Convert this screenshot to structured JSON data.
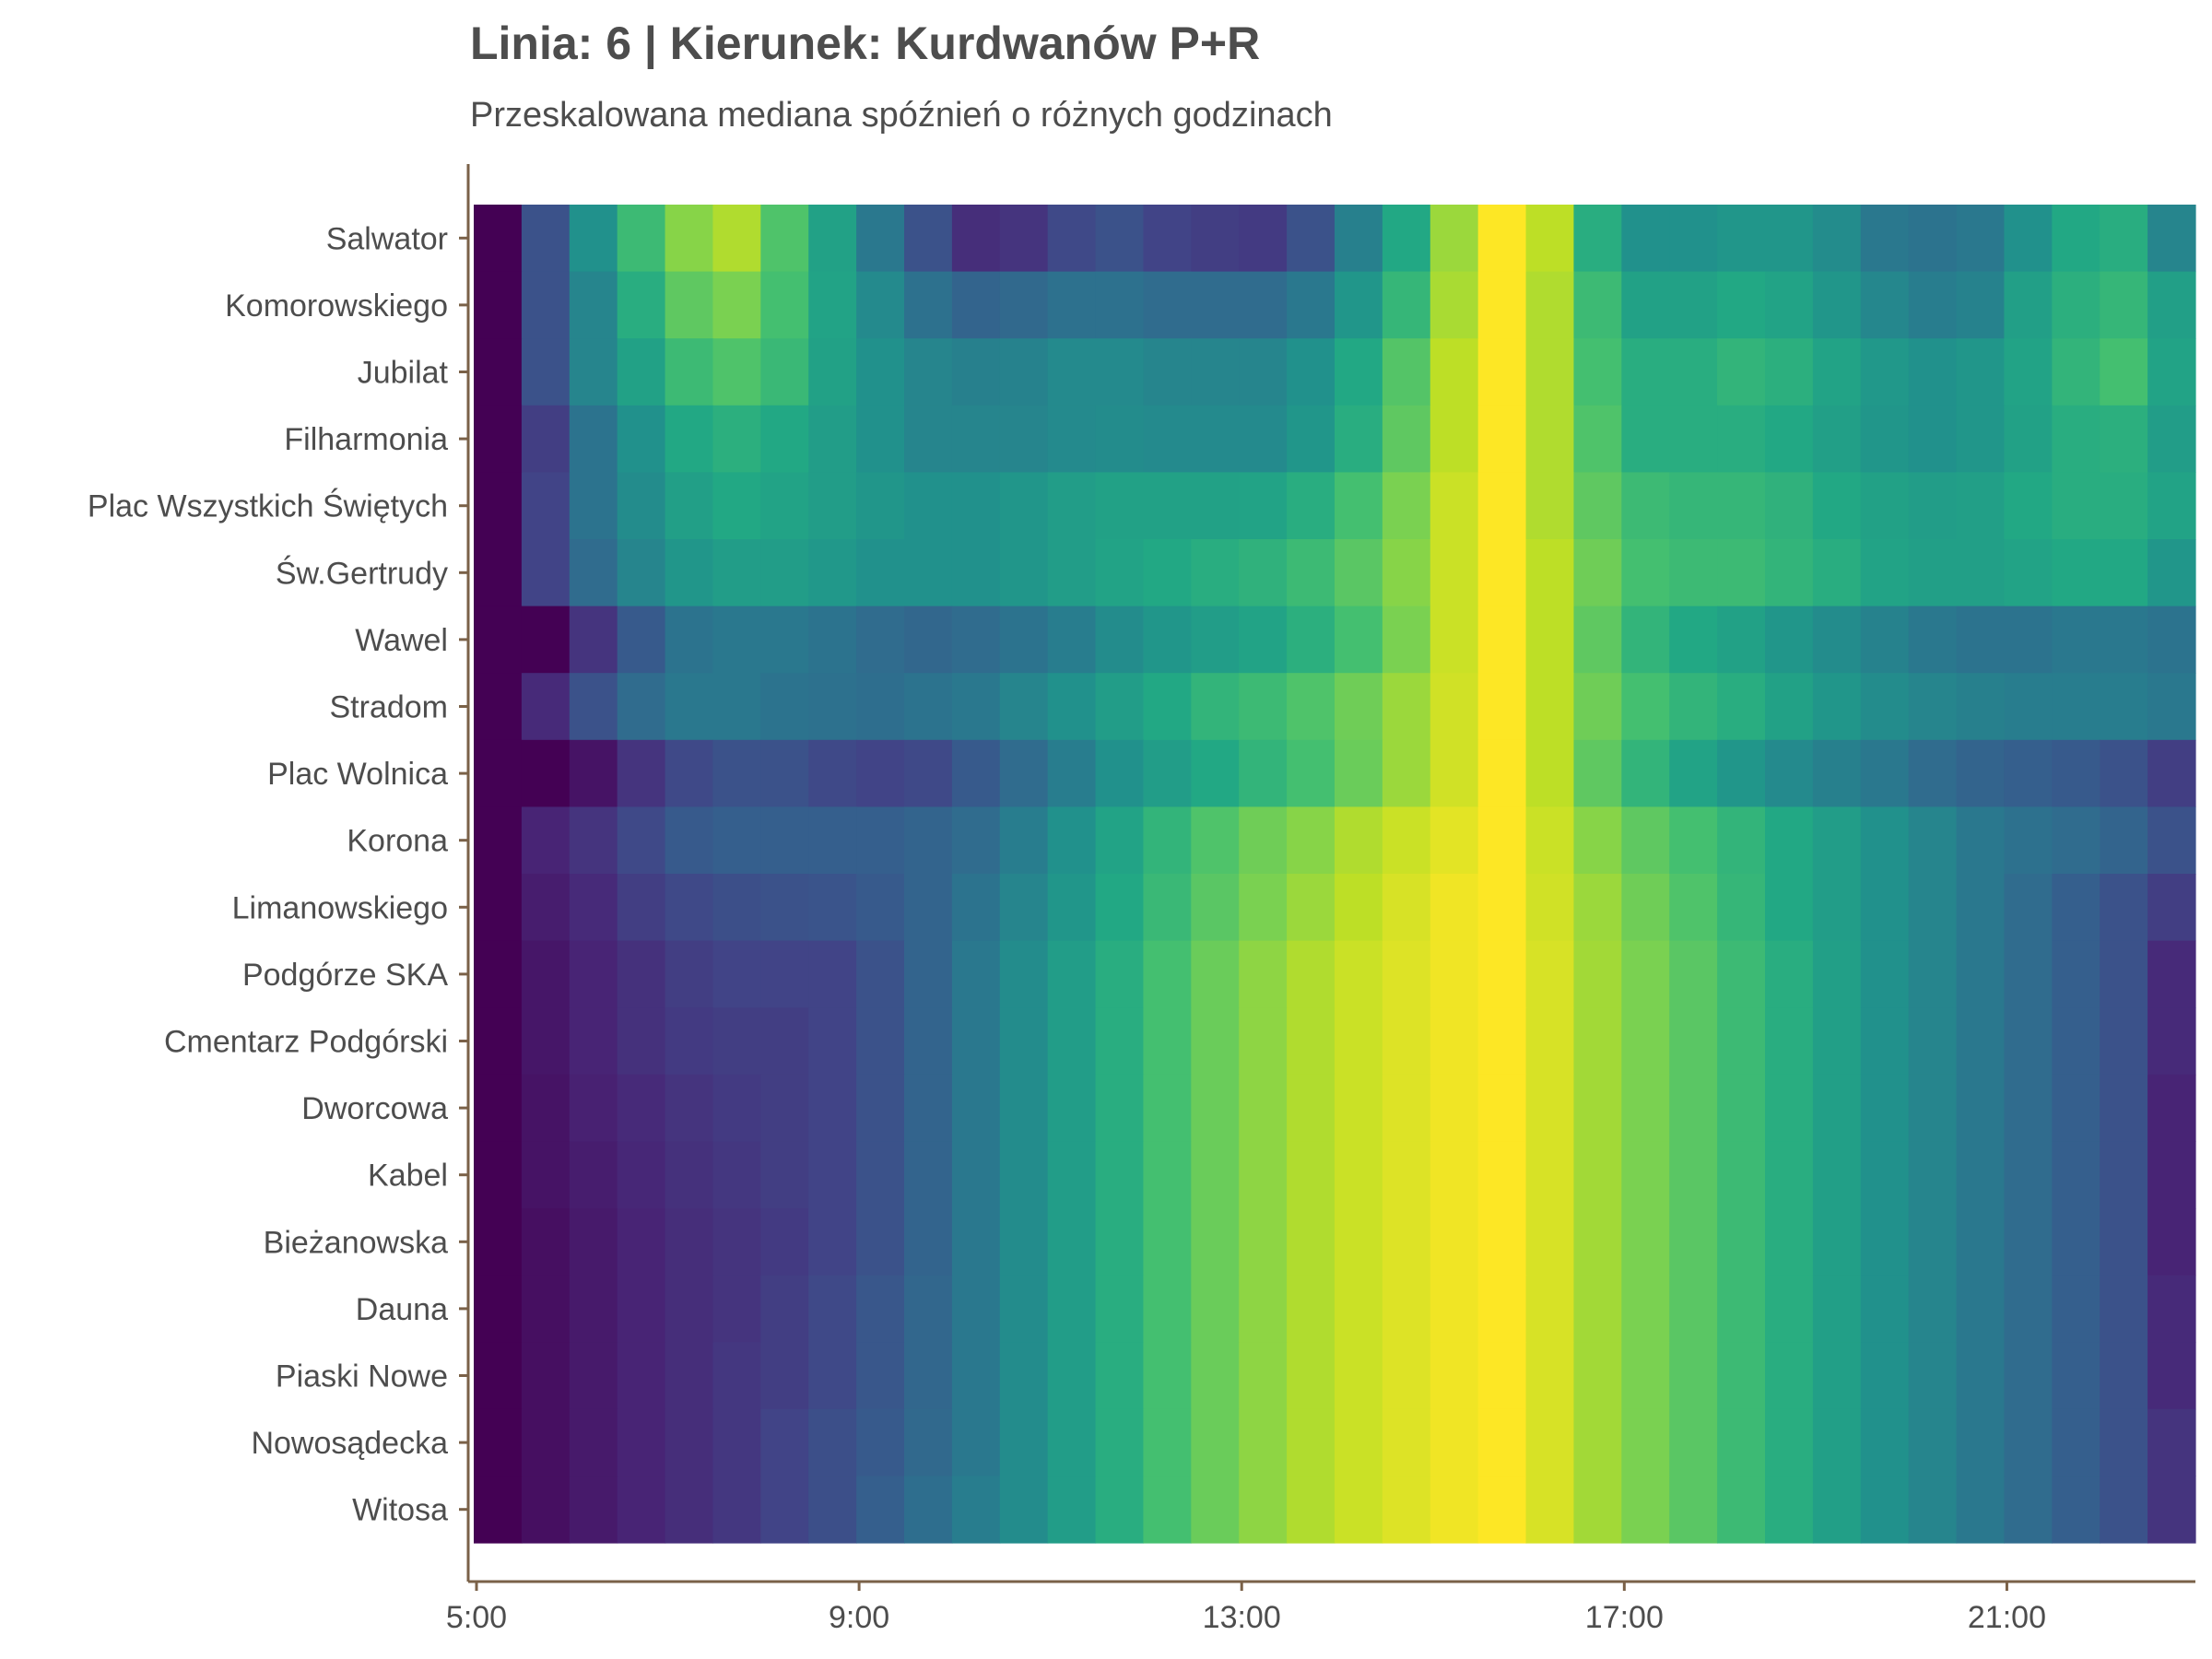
{
  "chart_data": {
    "type": "heatmap",
    "title": "Linia: 6 | Kierunek: Kurdwanów P+R",
    "subtitle": "Przeskalowana mediana spóźnień o różnych godzinach",
    "xlabel": "",
    "ylabel": "",
    "colormap": "viridis",
    "value_range": [
      0,
      1
    ],
    "x_tick_labels": [
      "5:00",
      "9:00",
      "13:00",
      "17:00",
      "21:00"
    ],
    "x_tick_hours": [
      5,
      9,
      13,
      17,
      21
    ],
    "x_hours": [
      5,
      5.5,
      6,
      6.5,
      7,
      7.5,
      8,
      8.5,
      9,
      9.5,
      10,
      10.5,
      11,
      11.5,
      12,
      12.5,
      13,
      13.5,
      14,
      14.5,
      15,
      15.5,
      16,
      16.5,
      17,
      17.5,
      18,
      18.5,
      19,
      19.5,
      20,
      20.5,
      21,
      21.5,
      22,
      22.5
    ],
    "stops": [
      "Salwator",
      "Komorowskiego",
      "Jubilat",
      "Filharmonia",
      "Plac Wszystkich Świętych",
      "Św.Gertrudy",
      "Wawel",
      "Stradom",
      "Plac Wolnica",
      "Korona",
      "Limanowskiego",
      "Podgórze SKA",
      "Cmentarz Podgórski",
      "Dworcowa",
      "Kabel",
      "Bieżanowska",
      "Dauna",
      "Piaski Nowe",
      "Nowosądecka",
      "Witosa"
    ],
    "values": [
      [
        0.0,
        0.25,
        0.5,
        0.68,
        0.82,
        0.88,
        0.72,
        0.57,
        0.4,
        0.25,
        0.13,
        0.15,
        0.22,
        0.25,
        0.2,
        0.18,
        0.17,
        0.25,
        0.43,
        0.6,
        0.85,
        1.0,
        0.9,
        0.62,
        0.5,
        0.5,
        0.52,
        0.52,
        0.48,
        0.4,
        0.38,
        0.4,
        0.5,
        0.6,
        0.62,
        0.45
      ],
      [
        0.0,
        0.25,
        0.45,
        0.62,
        0.75,
        0.8,
        0.7,
        0.58,
        0.47,
        0.37,
        0.32,
        0.34,
        0.37,
        0.37,
        0.35,
        0.35,
        0.35,
        0.4,
        0.52,
        0.66,
        0.87,
        1.0,
        0.88,
        0.68,
        0.57,
        0.57,
        0.6,
        0.58,
        0.52,
        0.46,
        0.42,
        0.44,
        0.56,
        0.63,
        0.66,
        0.56
      ],
      [
        0.0,
        0.25,
        0.45,
        0.57,
        0.68,
        0.72,
        0.67,
        0.57,
        0.5,
        0.45,
        0.43,
        0.44,
        0.47,
        0.47,
        0.45,
        0.45,
        0.45,
        0.5,
        0.6,
        0.73,
        0.9,
        1.0,
        0.88,
        0.7,
        0.62,
        0.62,
        0.65,
        0.63,
        0.58,
        0.53,
        0.5,
        0.52,
        0.58,
        0.65,
        0.7,
        0.58
      ],
      [
        0.0,
        0.18,
        0.38,
        0.5,
        0.6,
        0.63,
        0.6,
        0.55,
        0.5,
        0.45,
        0.45,
        0.45,
        0.47,
        0.48,
        0.47,
        0.47,
        0.47,
        0.52,
        0.62,
        0.75,
        0.9,
        1.0,
        0.88,
        0.72,
        0.62,
        0.62,
        0.62,
        0.6,
        0.56,
        0.52,
        0.5,
        0.52,
        0.57,
        0.62,
        0.63,
        0.55
      ],
      [
        0.0,
        0.2,
        0.38,
        0.48,
        0.56,
        0.6,
        0.58,
        0.55,
        0.52,
        0.5,
        0.5,
        0.52,
        0.55,
        0.57,
        0.57,
        0.57,
        0.58,
        0.62,
        0.7,
        0.8,
        0.92,
        1.0,
        0.88,
        0.75,
        0.68,
        0.66,
        0.66,
        0.64,
        0.6,
        0.57,
        0.55,
        0.56,
        0.6,
        0.62,
        0.62,
        0.58
      ],
      [
        0.0,
        0.2,
        0.35,
        0.45,
        0.52,
        0.55,
        0.55,
        0.53,
        0.5,
        0.5,
        0.5,
        0.52,
        0.55,
        0.58,
        0.6,
        0.62,
        0.64,
        0.68,
        0.74,
        0.82,
        0.92,
        1.0,
        0.9,
        0.78,
        0.7,
        0.68,
        0.68,
        0.65,
        0.62,
        0.58,
        0.56,
        0.56,
        0.58,
        0.6,
        0.6,
        0.52
      ],
      [
        0.0,
        0.0,
        0.15,
        0.28,
        0.38,
        0.4,
        0.4,
        0.38,
        0.35,
        0.33,
        0.35,
        0.38,
        0.42,
        0.48,
        0.52,
        0.55,
        0.58,
        0.63,
        0.7,
        0.8,
        0.92,
        1.0,
        0.9,
        0.75,
        0.65,
        0.6,
        0.57,
        0.52,
        0.48,
        0.44,
        0.4,
        0.38,
        0.38,
        0.4,
        0.4,
        0.38
      ],
      [
        0.0,
        0.12,
        0.25,
        0.35,
        0.4,
        0.4,
        0.38,
        0.37,
        0.36,
        0.38,
        0.4,
        0.45,
        0.5,
        0.55,
        0.6,
        0.65,
        0.68,
        0.72,
        0.78,
        0.85,
        0.93,
        1.0,
        0.9,
        0.78,
        0.7,
        0.65,
        0.62,
        0.57,
        0.52,
        0.48,
        0.45,
        0.43,
        0.42,
        0.42,
        0.42,
        0.4
      ],
      [
        0.0,
        0.0,
        0.05,
        0.15,
        0.22,
        0.25,
        0.25,
        0.22,
        0.2,
        0.22,
        0.28,
        0.35,
        0.42,
        0.5,
        0.55,
        0.6,
        0.65,
        0.7,
        0.77,
        0.85,
        0.93,
        1.0,
        0.9,
        0.75,
        0.65,
        0.58,
        0.52,
        0.47,
        0.43,
        0.4,
        0.35,
        0.32,
        0.3,
        0.28,
        0.25,
        0.18
      ],
      [
        0.0,
        0.1,
        0.15,
        0.22,
        0.28,
        0.3,
        0.3,
        0.3,
        0.3,
        0.32,
        0.35,
        0.42,
        0.5,
        0.58,
        0.65,
        0.72,
        0.78,
        0.82,
        0.88,
        0.92,
        0.96,
        1.0,
        0.92,
        0.82,
        0.75,
        0.7,
        0.65,
        0.6,
        0.55,
        0.5,
        0.45,
        0.4,
        0.37,
        0.35,
        0.32,
        0.25
      ],
      [
        0.0,
        0.08,
        0.12,
        0.18,
        0.22,
        0.24,
        0.25,
        0.26,
        0.28,
        0.32,
        0.38,
        0.45,
        0.52,
        0.6,
        0.67,
        0.74,
        0.8,
        0.85,
        0.9,
        0.94,
        0.98,
        1.0,
        0.93,
        0.85,
        0.78,
        0.72,
        0.66,
        0.6,
        0.55,
        0.5,
        0.45,
        0.4,
        0.35,
        0.3,
        0.25,
        0.18
      ],
      [
        0.0,
        0.06,
        0.1,
        0.14,
        0.18,
        0.2,
        0.2,
        0.2,
        0.25,
        0.32,
        0.4,
        0.48,
        0.55,
        0.62,
        0.7,
        0.77,
        0.83,
        0.88,
        0.92,
        0.95,
        0.98,
        1.0,
        0.94,
        0.86,
        0.8,
        0.74,
        0.68,
        0.62,
        0.56,
        0.5,
        0.45,
        0.4,
        0.35,
        0.3,
        0.25,
        0.12
      ],
      [
        0.0,
        0.06,
        0.1,
        0.14,
        0.17,
        0.18,
        0.18,
        0.2,
        0.25,
        0.32,
        0.4,
        0.48,
        0.55,
        0.62,
        0.7,
        0.77,
        0.83,
        0.88,
        0.92,
        0.95,
        0.98,
        1.0,
        0.94,
        0.86,
        0.8,
        0.74,
        0.68,
        0.62,
        0.56,
        0.5,
        0.45,
        0.4,
        0.35,
        0.3,
        0.25,
        0.12
      ],
      [
        0.0,
        0.05,
        0.09,
        0.12,
        0.15,
        0.17,
        0.18,
        0.2,
        0.25,
        0.32,
        0.4,
        0.48,
        0.55,
        0.62,
        0.7,
        0.77,
        0.83,
        0.88,
        0.92,
        0.95,
        0.98,
        1.0,
        0.94,
        0.86,
        0.8,
        0.74,
        0.68,
        0.62,
        0.56,
        0.5,
        0.45,
        0.4,
        0.35,
        0.3,
        0.25,
        0.1
      ],
      [
        0.0,
        0.05,
        0.08,
        0.11,
        0.14,
        0.16,
        0.18,
        0.2,
        0.25,
        0.32,
        0.4,
        0.48,
        0.55,
        0.62,
        0.7,
        0.77,
        0.83,
        0.88,
        0.92,
        0.95,
        0.98,
        1.0,
        0.94,
        0.86,
        0.8,
        0.74,
        0.68,
        0.62,
        0.56,
        0.5,
        0.45,
        0.4,
        0.35,
        0.3,
        0.25,
        0.1
      ],
      [
        0.0,
        0.04,
        0.07,
        0.1,
        0.13,
        0.15,
        0.17,
        0.2,
        0.25,
        0.32,
        0.4,
        0.48,
        0.55,
        0.62,
        0.7,
        0.77,
        0.83,
        0.88,
        0.92,
        0.95,
        0.98,
        1.0,
        0.94,
        0.86,
        0.8,
        0.74,
        0.68,
        0.62,
        0.56,
        0.5,
        0.45,
        0.4,
        0.35,
        0.3,
        0.25,
        0.1
      ],
      [
        0.0,
        0.04,
        0.07,
        0.1,
        0.13,
        0.15,
        0.18,
        0.22,
        0.27,
        0.33,
        0.4,
        0.48,
        0.55,
        0.62,
        0.7,
        0.77,
        0.83,
        0.88,
        0.92,
        0.95,
        0.98,
        1.0,
        0.94,
        0.86,
        0.8,
        0.74,
        0.68,
        0.62,
        0.56,
        0.5,
        0.45,
        0.4,
        0.35,
        0.3,
        0.25,
        0.12
      ],
      [
        0.0,
        0.04,
        0.07,
        0.1,
        0.13,
        0.16,
        0.18,
        0.22,
        0.27,
        0.33,
        0.4,
        0.48,
        0.55,
        0.62,
        0.7,
        0.77,
        0.83,
        0.88,
        0.92,
        0.95,
        0.98,
        1.0,
        0.94,
        0.86,
        0.8,
        0.74,
        0.68,
        0.62,
        0.56,
        0.5,
        0.45,
        0.4,
        0.35,
        0.3,
        0.25,
        0.12
      ],
      [
        0.0,
        0.04,
        0.07,
        0.1,
        0.13,
        0.16,
        0.2,
        0.24,
        0.28,
        0.34,
        0.4,
        0.48,
        0.55,
        0.62,
        0.7,
        0.77,
        0.83,
        0.88,
        0.92,
        0.95,
        0.98,
        1.0,
        0.94,
        0.86,
        0.8,
        0.74,
        0.68,
        0.62,
        0.56,
        0.5,
        0.45,
        0.4,
        0.35,
        0.3,
        0.25,
        0.15
      ],
      [
        0.0,
        0.04,
        0.07,
        0.1,
        0.13,
        0.16,
        0.2,
        0.24,
        0.3,
        0.36,
        0.42,
        0.48,
        0.55,
        0.62,
        0.7,
        0.77,
        0.83,
        0.88,
        0.92,
        0.95,
        0.98,
        1.0,
        0.94,
        0.86,
        0.8,
        0.74,
        0.68,
        0.62,
        0.56,
        0.5,
        0.45,
        0.4,
        0.35,
        0.3,
        0.25,
        0.15
      ]
    ],
    "colors": {
      "text": "#4d4d4d",
      "axis": "#7a6148"
    }
  }
}
